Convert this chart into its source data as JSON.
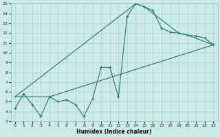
{
  "xlabel": "Humidex (Indice chaleur)",
  "bg_color": "#ceeae8",
  "grid_color": "#aacfcc",
  "line_color": "#1a7a6e",
  "xlim": [
    -0.5,
    23.5
  ],
  "ylim": [
    3,
    15
  ],
  "xticks": [
    0,
    1,
    2,
    3,
    4,
    5,
    6,
    7,
    8,
    9,
    10,
    11,
    12,
    13,
    14,
    15,
    16,
    17,
    18,
    19,
    20,
    21,
    22,
    23
  ],
  "yticks": [
    3,
    4,
    5,
    6,
    7,
    8,
    9,
    10,
    11,
    12,
    13,
    14,
    15
  ],
  "line1_x": [
    0,
    1,
    2,
    3,
    4,
    5,
    6,
    7,
    8,
    9,
    10,
    11,
    12,
    13,
    14,
    15,
    16,
    17,
    18,
    19,
    20,
    21,
    22,
    23
  ],
  "line1_y": [
    4.3,
    5.8,
    4.7,
    3.5,
    5.5,
    5.0,
    5.2,
    4.7,
    3.5,
    5.3,
    8.5,
    8.5,
    5.5,
    13.7,
    15.0,
    14.7,
    14.3,
    12.5,
    12.1,
    12.0,
    11.8,
    11.7,
    11.5,
    10.8
  ],
  "line2_x": [
    0,
    4,
    23
  ],
  "line2_y": [
    5.5,
    5.5,
    10.8
  ],
  "line3_x": [
    0,
    14,
    15,
    19,
    20,
    23
  ],
  "line3_y": [
    5.5,
    15.0,
    14.7,
    12.0,
    11.8,
    10.8
  ]
}
